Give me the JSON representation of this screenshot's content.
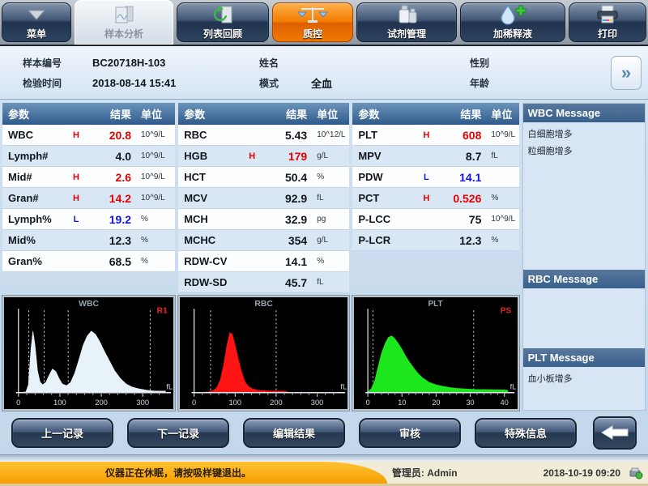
{
  "tabs": [
    {
      "label": "菜单"
    },
    {
      "label": "样本分析"
    },
    {
      "label": "列表回顾"
    },
    {
      "label": "质控"
    },
    {
      "label": "试剂管理"
    },
    {
      "label": "加稀释液"
    },
    {
      "label": "打印"
    }
  ],
  "info": {
    "sample_id_label": "样本编号",
    "sample_id": "BC20718H-103",
    "name_label": "姓名",
    "name": "",
    "gender_label": "性别",
    "gender": "",
    "time_label": "检验时间",
    "time": "2018-08-14 15:41",
    "mode_label": "模式",
    "mode": "全血",
    "age_label": "年龄",
    "age": "",
    "expand_icon": "»"
  },
  "table_headers": {
    "param": "参数",
    "result": "结果",
    "unit": "单位"
  },
  "tables": [
    {
      "name": "wbc-results",
      "rows": [
        {
          "param": "WBC",
          "flag": "H",
          "result": "20.8",
          "unit": "10^9/L"
        },
        {
          "param": "Lymph#",
          "flag": "",
          "result": "4.0",
          "unit": "10^9/L"
        },
        {
          "param": "Mid#",
          "flag": "H",
          "result": "2.6",
          "unit": "10^9/L"
        },
        {
          "param": "Gran#",
          "flag": "H",
          "result": "14.2",
          "unit": "10^9/L"
        },
        {
          "param": "Lymph%",
          "flag": "L",
          "result": "19.2",
          "unit": "%"
        },
        {
          "param": "Mid%",
          "flag": "",
          "result": "12.3",
          "unit": "%"
        },
        {
          "param": "Gran%",
          "flag": "",
          "result": "68.5",
          "unit": "%"
        }
      ]
    },
    {
      "name": "rbc-results",
      "rows": [
        {
          "param": "RBC",
          "flag": "",
          "result": "5.43",
          "unit": "10^12/L"
        },
        {
          "param": "HGB",
          "flag": "H",
          "result": "179",
          "unit": "g/L"
        },
        {
          "param": "HCT",
          "flag": "",
          "result": "50.4",
          "unit": "%"
        },
        {
          "param": "MCV",
          "flag": "",
          "result": "92.9",
          "unit": "fL"
        },
        {
          "param": "MCH",
          "flag": "",
          "result": "32.9",
          "unit": "pg"
        },
        {
          "param": "MCHC",
          "flag": "",
          "result": "354",
          "unit": "g/L"
        },
        {
          "param": "RDW-CV",
          "flag": "",
          "result": "14.1",
          "unit": "%"
        },
        {
          "param": "RDW-SD",
          "flag": "",
          "result": "45.7",
          "unit": "fL"
        }
      ]
    },
    {
      "name": "plt-results",
      "rows": [
        {
          "param": "PLT",
          "flag": "H",
          "result": "608",
          "unit": "10^9/L"
        },
        {
          "param": "MPV",
          "flag": "",
          "result": "8.7",
          "unit": "fL"
        },
        {
          "param": "PDW",
          "flag": "L",
          "result": "14.1",
          "unit": ""
        },
        {
          "param": "PCT",
          "flag": "H",
          "result": "0.526",
          "unit": "%"
        },
        {
          "param": "P-LCC",
          "flag": "",
          "result": "75",
          "unit": "10^9/L"
        },
        {
          "param": "P-LCR",
          "flag": "",
          "result": "12.3",
          "unit": "%"
        }
      ]
    }
  ],
  "messages": [
    {
      "title": "WBC Message",
      "lines": [
        "白细胞增多",
        "粒细胞增多"
      ]
    },
    {
      "title": "RBC Message",
      "lines": []
    },
    {
      "title": "PLT Message",
      "lines": [
        "血小板增多"
      ]
    }
  ],
  "chart_data": [
    {
      "type": "area",
      "title": "WBC",
      "flag": "R1",
      "unit": "fL",
      "xlabel": "fL",
      "xmax": 360,
      "ticks": [
        0,
        100,
        200,
        300
      ],
      "minor_step": 20,
      "dashes": [
        25,
        62,
        120,
        318
      ],
      "color": "#e8f3f9",
      "grid": false,
      "points": [
        [
          0,
          0
        ],
        [
          18,
          0.01
        ],
        [
          24,
          0.1
        ],
        [
          30,
          0.55
        ],
        [
          35,
          0.78
        ],
        [
          40,
          0.6
        ],
        [
          46,
          0.28
        ],
        [
          52,
          0.14
        ],
        [
          58,
          0.1
        ],
        [
          66,
          0.13
        ],
        [
          74,
          0.22
        ],
        [
          82,
          0.3
        ],
        [
          90,
          0.27
        ],
        [
          98,
          0.18
        ],
        [
          106,
          0.11
        ],
        [
          116,
          0.09
        ],
        [
          126,
          0.13
        ],
        [
          136,
          0.25
        ],
        [
          146,
          0.42
        ],
        [
          156,
          0.6
        ],
        [
          166,
          0.72
        ],
        [
          176,
          0.78
        ],
        [
          186,
          0.74
        ],
        [
          196,
          0.65
        ],
        [
          208,
          0.52
        ],
        [
          220,
          0.4
        ],
        [
          232,
          0.28
        ],
        [
          246,
          0.18
        ],
        [
          260,
          0.11
        ],
        [
          275,
          0.07
        ],
        [
          290,
          0.05
        ],
        [
          310,
          0.03
        ],
        [
          330,
          0.02
        ],
        [
          355,
          0.02
        ]
      ]
    },
    {
      "type": "area",
      "title": "RBC",
      "flag": "",
      "unit": "fL",
      "xlabel": "fL",
      "xmax": 360,
      "ticks": [
        0,
        100,
        200,
        300
      ],
      "minor_step": 20,
      "dashes": [
        40,
        200
      ],
      "color": "#ff1414",
      "grid": false,
      "points": [
        [
          0,
          0
        ],
        [
          35,
          0.01
        ],
        [
          48,
          0.03
        ],
        [
          56,
          0.07
        ],
        [
          64,
          0.16
        ],
        [
          72,
          0.35
        ],
        [
          80,
          0.6
        ],
        [
          87,
          0.76
        ],
        [
          93,
          0.74
        ],
        [
          100,
          0.6
        ],
        [
          108,
          0.42
        ],
        [
          116,
          0.26
        ],
        [
          124,
          0.14
        ],
        [
          132,
          0.08
        ],
        [
          142,
          0.05
        ],
        [
          155,
          0.03
        ],
        [
          170,
          0.025
        ],
        [
          190,
          0.02
        ],
        [
          210,
          0.02
        ],
        [
          225,
          0.015
        ],
        [
          228,
          0.01
        ]
      ]
    },
    {
      "type": "area",
      "title": "PLT",
      "flag": "PS",
      "unit": "fL",
      "xlabel": "fL",
      "xmax": 42,
      "ticks": [
        0,
        10,
        20,
        30,
        40
      ],
      "minor_step": 2,
      "dashes": [
        1.5,
        31
      ],
      "color": "#1ce61c",
      "grid": false,
      "points": [
        [
          0,
          0.01
        ],
        [
          1,
          0.05
        ],
        [
          2,
          0.15
        ],
        [
          3,
          0.33
        ],
        [
          4,
          0.5
        ],
        [
          5,
          0.62
        ],
        [
          6,
          0.7
        ],
        [
          7,
          0.72
        ],
        [
          8,
          0.68
        ],
        [
          9,
          0.62
        ],
        [
          10,
          0.55
        ],
        [
          11,
          0.47
        ],
        [
          12,
          0.4
        ],
        [
          13,
          0.34
        ],
        [
          14,
          0.28
        ],
        [
          15,
          0.23
        ],
        [
          16,
          0.19
        ],
        [
          17,
          0.16
        ],
        [
          18,
          0.13
        ],
        [
          20,
          0.1
        ],
        [
          22,
          0.08
        ],
        [
          24,
          0.065
        ],
        [
          26,
          0.055
        ],
        [
          28,
          0.05
        ],
        [
          30,
          0.045
        ],
        [
          32,
          0.04
        ],
        [
          34,
          0.04
        ],
        [
          36,
          0.038
        ],
        [
          38,
          0.036
        ],
        [
          40,
          0.035
        ],
        [
          41,
          0.03
        ]
      ]
    }
  ],
  "buttons": [
    {
      "label": "上一记录"
    },
    {
      "label": "下一记录"
    },
    {
      "label": "编辑结果"
    },
    {
      "label": "审核"
    },
    {
      "label": "特殊信息"
    }
  ],
  "status": {
    "message": "仪器正在休眠，请按吸样键退出。",
    "operator_label": "管理员:",
    "operator": "Admin",
    "datetime": "2018-10-19 09:20"
  },
  "colors": {
    "high": "#e60000",
    "low": "#1414e6",
    "accent": "#f27d00",
    "wbc_curve": "#e8f3f9",
    "rbc_curve": "#ff1414",
    "plt_curve": "#1ce61c"
  }
}
